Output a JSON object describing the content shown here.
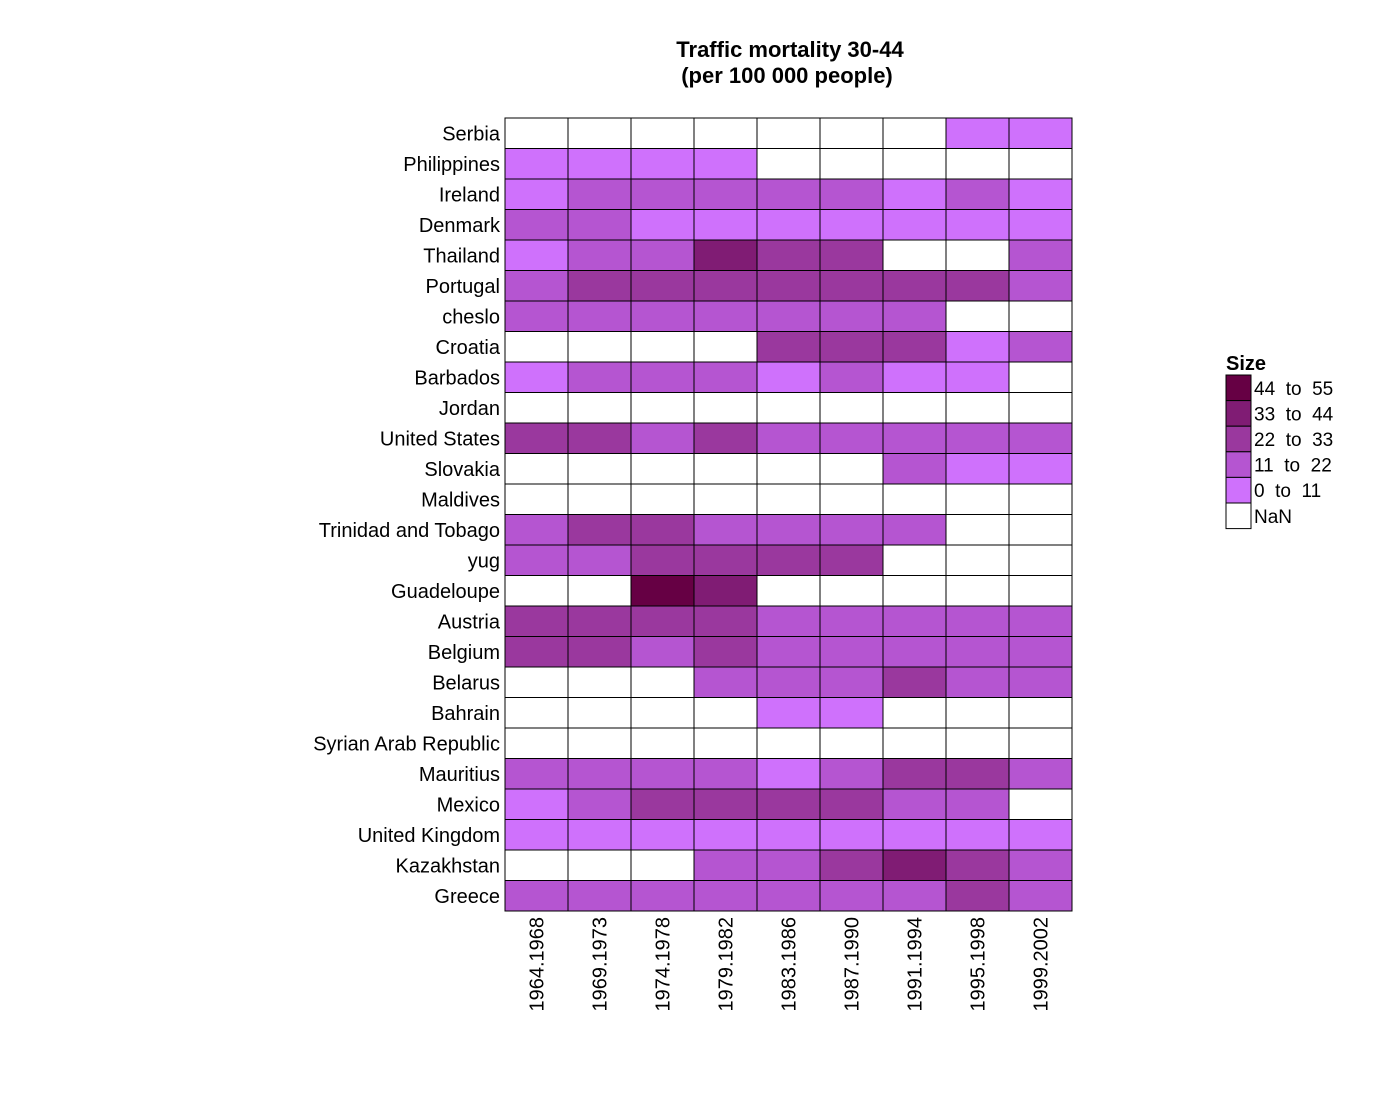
{
  "chart_data": {
    "type": "heatmap",
    "title": "Traffic mortality 30-44",
    "subtitle": "(per 100 000 people)",
    "columns": [
      "1964.1968",
      "1969.1973",
      "1974.1978",
      "1979.1982",
      "1983.1986",
      "1987.1990",
      "1991.1994",
      "1995.1998",
      "1999.2002"
    ],
    "rows": [
      "Serbia",
      "Philippines",
      "Ireland",
      "Denmark",
      "Thailand",
      "Portugal",
      "cheslo",
      "Croatia",
      "Barbados",
      "Jordan",
      "United States",
      "Slovakia",
      "Maldives",
      "Trinidad and Tobago",
      "yug",
      "Guadeloupe",
      "Austria",
      "Belgium",
      "Belarus",
      "Bahrain",
      "Syrian Arab Republic",
      "Mauritius",
      "Mexico",
      "United Kingdom",
      "Kazakhstan",
      "Greece"
    ],
    "values_bin": [
      [
        null,
        null,
        null,
        null,
        null,
        null,
        null,
        0,
        0
      ],
      [
        0,
        0,
        0,
        0,
        null,
        null,
        null,
        null,
        null
      ],
      [
        0,
        1,
        1,
        1,
        1,
        1,
        0,
        1,
        0
      ],
      [
        1,
        1,
        0,
        0,
        0,
        0,
        0,
        0,
        0
      ],
      [
        0,
        1,
        1,
        3,
        2,
        2,
        null,
        null,
        1
      ],
      [
        1,
        2,
        2,
        2,
        2,
        2,
        2,
        2,
        1
      ],
      [
        1,
        1,
        1,
        1,
        1,
        1,
        1,
        null,
        null
      ],
      [
        null,
        null,
        null,
        null,
        2,
        2,
        2,
        0,
        1
      ],
      [
        0,
        1,
        1,
        1,
        0,
        1,
        0,
        0,
        null
      ],
      [
        null,
        null,
        null,
        null,
        null,
        null,
        null,
        null,
        null
      ],
      [
        2,
        2,
        1,
        2,
        1,
        1,
        1,
        1,
        1
      ],
      [
        null,
        null,
        null,
        null,
        null,
        null,
        1,
        0,
        0
      ],
      [
        null,
        null,
        null,
        null,
        null,
        null,
        null,
        null,
        null
      ],
      [
        1,
        2,
        2,
        1,
        1,
        1,
        1,
        null,
        null
      ],
      [
        1,
        1,
        2,
        2,
        2,
        2,
        null,
        null,
        null
      ],
      [
        null,
        null,
        4,
        3,
        null,
        null,
        null,
        null,
        null
      ],
      [
        2,
        2,
        2,
        2,
        1,
        1,
        1,
        1,
        1
      ],
      [
        2,
        2,
        1,
        2,
        1,
        1,
        1,
        1,
        1
      ],
      [
        null,
        null,
        null,
        1,
        1,
        1,
        2,
        1,
        1
      ],
      [
        null,
        null,
        null,
        null,
        0,
        0,
        null,
        null,
        null
      ],
      [
        null,
        null,
        null,
        null,
        null,
        null,
        null,
        null,
        null
      ],
      [
        1,
        1,
        1,
        1,
        0,
        1,
        2,
        2,
        1
      ],
      [
        0,
        1,
        2,
        2,
        2,
        2,
        1,
        1,
        null
      ],
      [
        0,
        0,
        0,
        0,
        0,
        0,
        0,
        0,
        0
      ],
      [
        null,
        null,
        null,
        1,
        1,
        2,
        3,
        2,
        1
      ],
      [
        1,
        1,
        1,
        1,
        1,
        1,
        1,
        2,
        1
      ]
    ],
    "legend": {
      "title": "Size",
      "bins": [
        {
          "label": "44  to  55",
          "color": "#660044"
        },
        {
          "label": "33  to  44",
          "color": "#801c74"
        },
        {
          "label": "22  to  33",
          "color": "#9a389e"
        },
        {
          "label": "11  to  22",
          "color": "#b555d1"
        },
        {
          "label": "0  to  11",
          "color": "#cf71fc"
        },
        {
          "label": "NaN",
          "color": "#ffffff"
        }
      ],
      "position": "right"
    },
    "bin_colors": [
      "#cf71fc",
      "#b555d1",
      "#9a389e",
      "#801c74",
      "#660044"
    ],
    "nan_color": "#ffffff",
    "grid_color": "#000000"
  }
}
